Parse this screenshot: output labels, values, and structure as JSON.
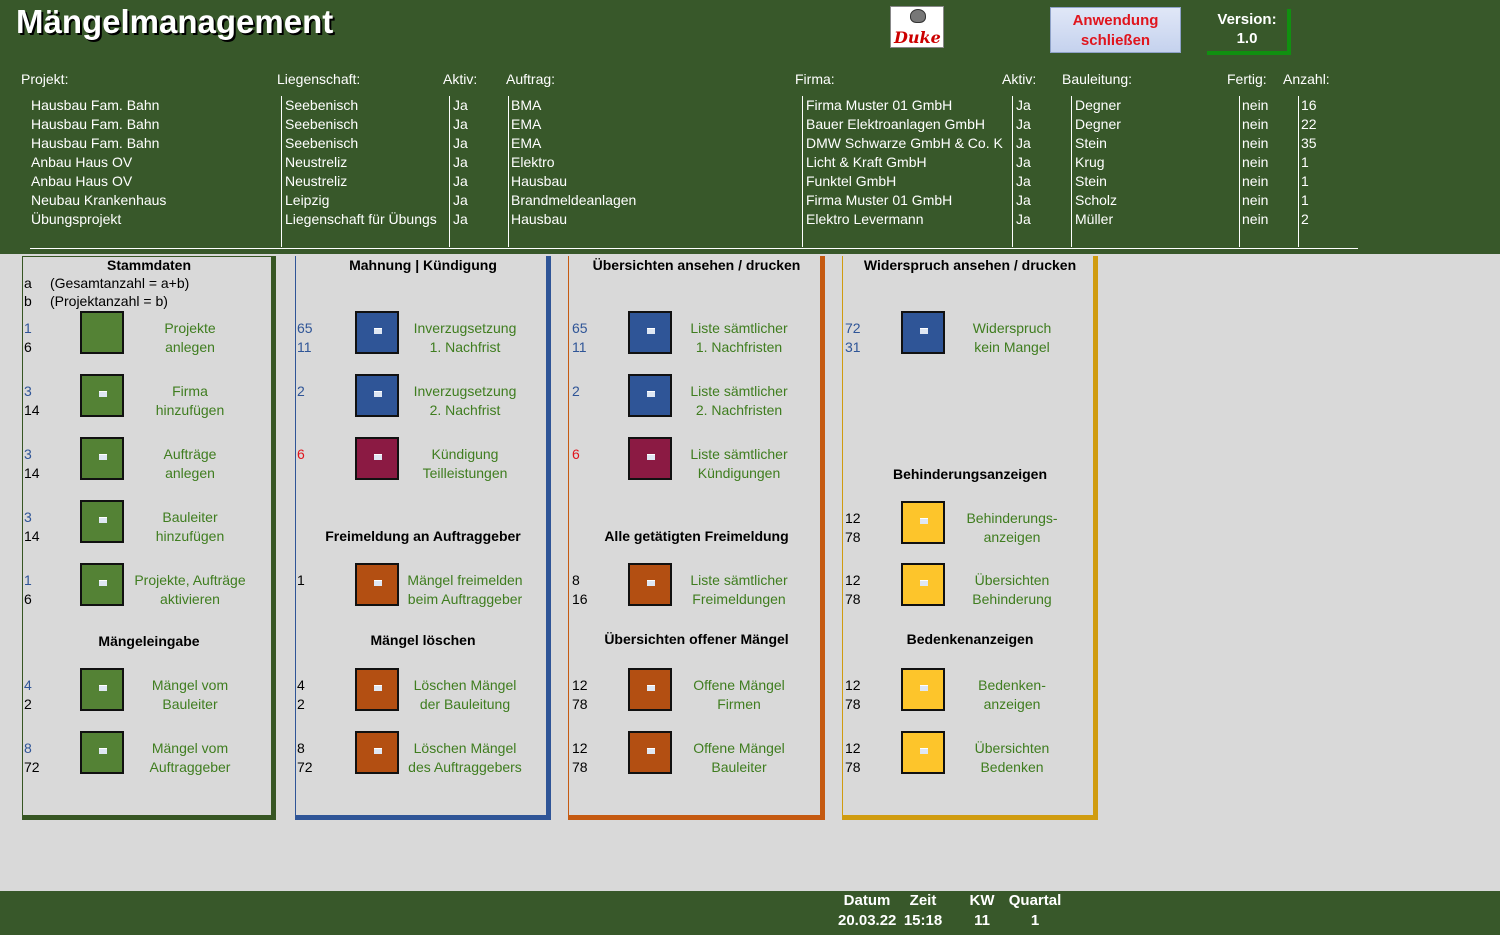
{
  "app": {
    "title": "Mängelmanagement",
    "logo_text": "Duke",
    "close_button": "Anwendung\nschließen",
    "version_label": "Version:",
    "version_value": "1.0"
  },
  "headers": {
    "projekt": "Projekt:",
    "liegenschaft": "Liegenschaft:",
    "aktiv": "Aktiv:",
    "auftrag": "Auftrag:",
    "firma": "Firma:",
    "aktiv2": "Aktiv:",
    "bauleitung": "Bauleitung:",
    "fertig": "Fertig:",
    "anzahl": "Anzahl:"
  },
  "table": {
    "projekt": [
      "Hausbau Fam. Bahn",
      "Hausbau Fam. Bahn",
      "Hausbau Fam. Bahn",
      "Anbau Haus OV",
      "Anbau Haus OV",
      "Neubau Krankenhaus",
      "Übungsprojekt"
    ],
    "liegenschaft": [
      "Seebenisch",
      "Seebenisch",
      "Seebenisch",
      "Neustreliz",
      "Neustreliz",
      "Leipzig",
      "Liegenschaft für Übungs"
    ],
    "aktiv": [
      "Ja",
      "Ja",
      "Ja",
      "Ja",
      "Ja",
      "Ja",
      "Ja"
    ],
    "auftrag": [
      "BMA",
      "EMA",
      "EMA",
      "Elektro",
      "Hausbau",
      "Brandmeldeanlagen",
      "Hausbau"
    ],
    "firma": [
      "Firma Muster 01 GmbH",
      "Bauer Elektroanlagen GmbH",
      "DMW Schwarze GmbH & Co. K",
      "Licht & Kraft GmbH",
      "Funktel GmbH",
      "Firma Muster 01 GmbH",
      "Elektro Levermann"
    ],
    "aktiv2": [
      "Ja",
      "Ja",
      "Ja",
      "Ja",
      "Ja",
      "Ja",
      "Ja"
    ],
    "bauleitung": [
      "Degner",
      "Degner",
      "Stein",
      "Krug",
      "Stein",
      "Scholz",
      "Müller"
    ],
    "fertig": [
      "nein",
      "nein",
      "nein",
      "nein",
      "nein",
      "nein",
      "nein"
    ],
    "anzahl": [
      "16",
      "22",
      "35",
      "1",
      "1",
      "1",
      "2"
    ]
  },
  "panel1": {
    "title": "Stammdaten",
    "legend_a_key": "a",
    "legend_a_text": "(Gesamtanzahl = a+b)",
    "legend_b_key": "b",
    "legend_b_text": "(Projektanzahl  = b)",
    "items": [
      {
        "a": "1",
        "b": "6",
        "label": "Projekte\nanlegen"
      },
      {
        "a": "3",
        "b": "14",
        "label": "Firma\nhinzufügen"
      },
      {
        "a": "3",
        "b": "14",
        "label": "Aufträge\nanlegen"
      },
      {
        "a": "3",
        "b": "14",
        "label": "Bauleiter\nhinzufügen"
      },
      {
        "a": "1",
        "b": "6",
        "label": "Projekte, Aufträge\naktivieren"
      },
      {
        "a": "4",
        "b": "2",
        "label": "Mängel vom\nBauleiter"
      },
      {
        "a": "8",
        "b": "72",
        "label": "Mängel vom\nAuftraggeber"
      }
    ],
    "sub_title": "Mängeleingabe"
  },
  "panel2": {
    "title": "Mahnung | Kündigung",
    "items": [
      {
        "a": "65",
        "b": "11",
        "label": "Inverzugsetzung\n1. Nachfrist"
      },
      {
        "a": "2",
        "b": "",
        "label": "Inverzugsetzung\n2. Nachfrist"
      },
      {
        "a": "6",
        "b": "",
        "label": "Kündigung\nTeilleistungen"
      },
      {
        "a": "1",
        "b": "",
        "label": "Mängel freimelden\nbeim Auftraggeber"
      },
      {
        "a": "4",
        "b": "2",
        "label": "Löschen Mängel\nder Bauleitung"
      },
      {
        "a": "8",
        "b": "72",
        "label": "Löschen Mängel\ndes Auftraggebers"
      }
    ],
    "sub_title1": "Freimeldung an Auftraggeber",
    "sub_title2": "Mängel löschen"
  },
  "panel3": {
    "title": "Übersichten ansehen / drucken",
    "items": [
      {
        "a": "65",
        "b": "11",
        "label": "Liste sämtlicher\n1. Nachfristen"
      },
      {
        "a": "2",
        "b": "",
        "label": "Liste sämtlicher\n2. Nachfristen"
      },
      {
        "a": "6",
        "b": "",
        "label": "Liste sämtlicher\nKündigungen"
      },
      {
        "a": "8",
        "b": "16",
        "label": "Liste sämtlicher\nFreimeldungen"
      },
      {
        "a": "12",
        "b": "78",
        "label": "Offene Mängel\nFirmen"
      },
      {
        "a": "12",
        "b": "78",
        "label": "Offene Mängel\nBauleiter"
      }
    ],
    "sub_title1": "Alle getätigten Freimeldung",
    "sub_title2": "Übersichten offener Mängel"
  },
  "panel4": {
    "title": "Widerspruch ansehen / drucken",
    "items": [
      {
        "a": "72",
        "b": "31",
        "label": "Widerspruch\nkein Mangel"
      },
      {
        "a": "12",
        "b": "78",
        "label": "Behinderungs-\nanzeigen"
      },
      {
        "a": "12",
        "b": "78",
        "label": "Übersichten\nBehinderung"
      },
      {
        "a": "12",
        "b": "78",
        "label": "Bedenken-\nanzeigen"
      },
      {
        "a": "12",
        "b": "78",
        "label": "Übersichten\nBedenken"
      }
    ],
    "sub_title1": "Behinderungsanzeigen",
    "sub_title2": "Bedenkenanzeigen"
  },
  "footer": {
    "datum_label": "Datum",
    "datum": "20.03.22",
    "zeit_label": "Zeit",
    "zeit": "15:18",
    "kw_label": "KW",
    "kw": "11",
    "quartal_label": "Quartal",
    "quartal": "1"
  },
  "colors": {
    "header_green": "#38582a",
    "btn_green": "#548235",
    "btn_blue": "#2f5597",
    "btn_red": "#8b1a43",
    "btn_orange": "#b34f12",
    "btn_yellow": "#fdc52b",
    "panel1_border": "#375623",
    "panel2_border": "#2f5597",
    "panel3_border": "#c55a11",
    "panel4_border": "#d09c10"
  }
}
